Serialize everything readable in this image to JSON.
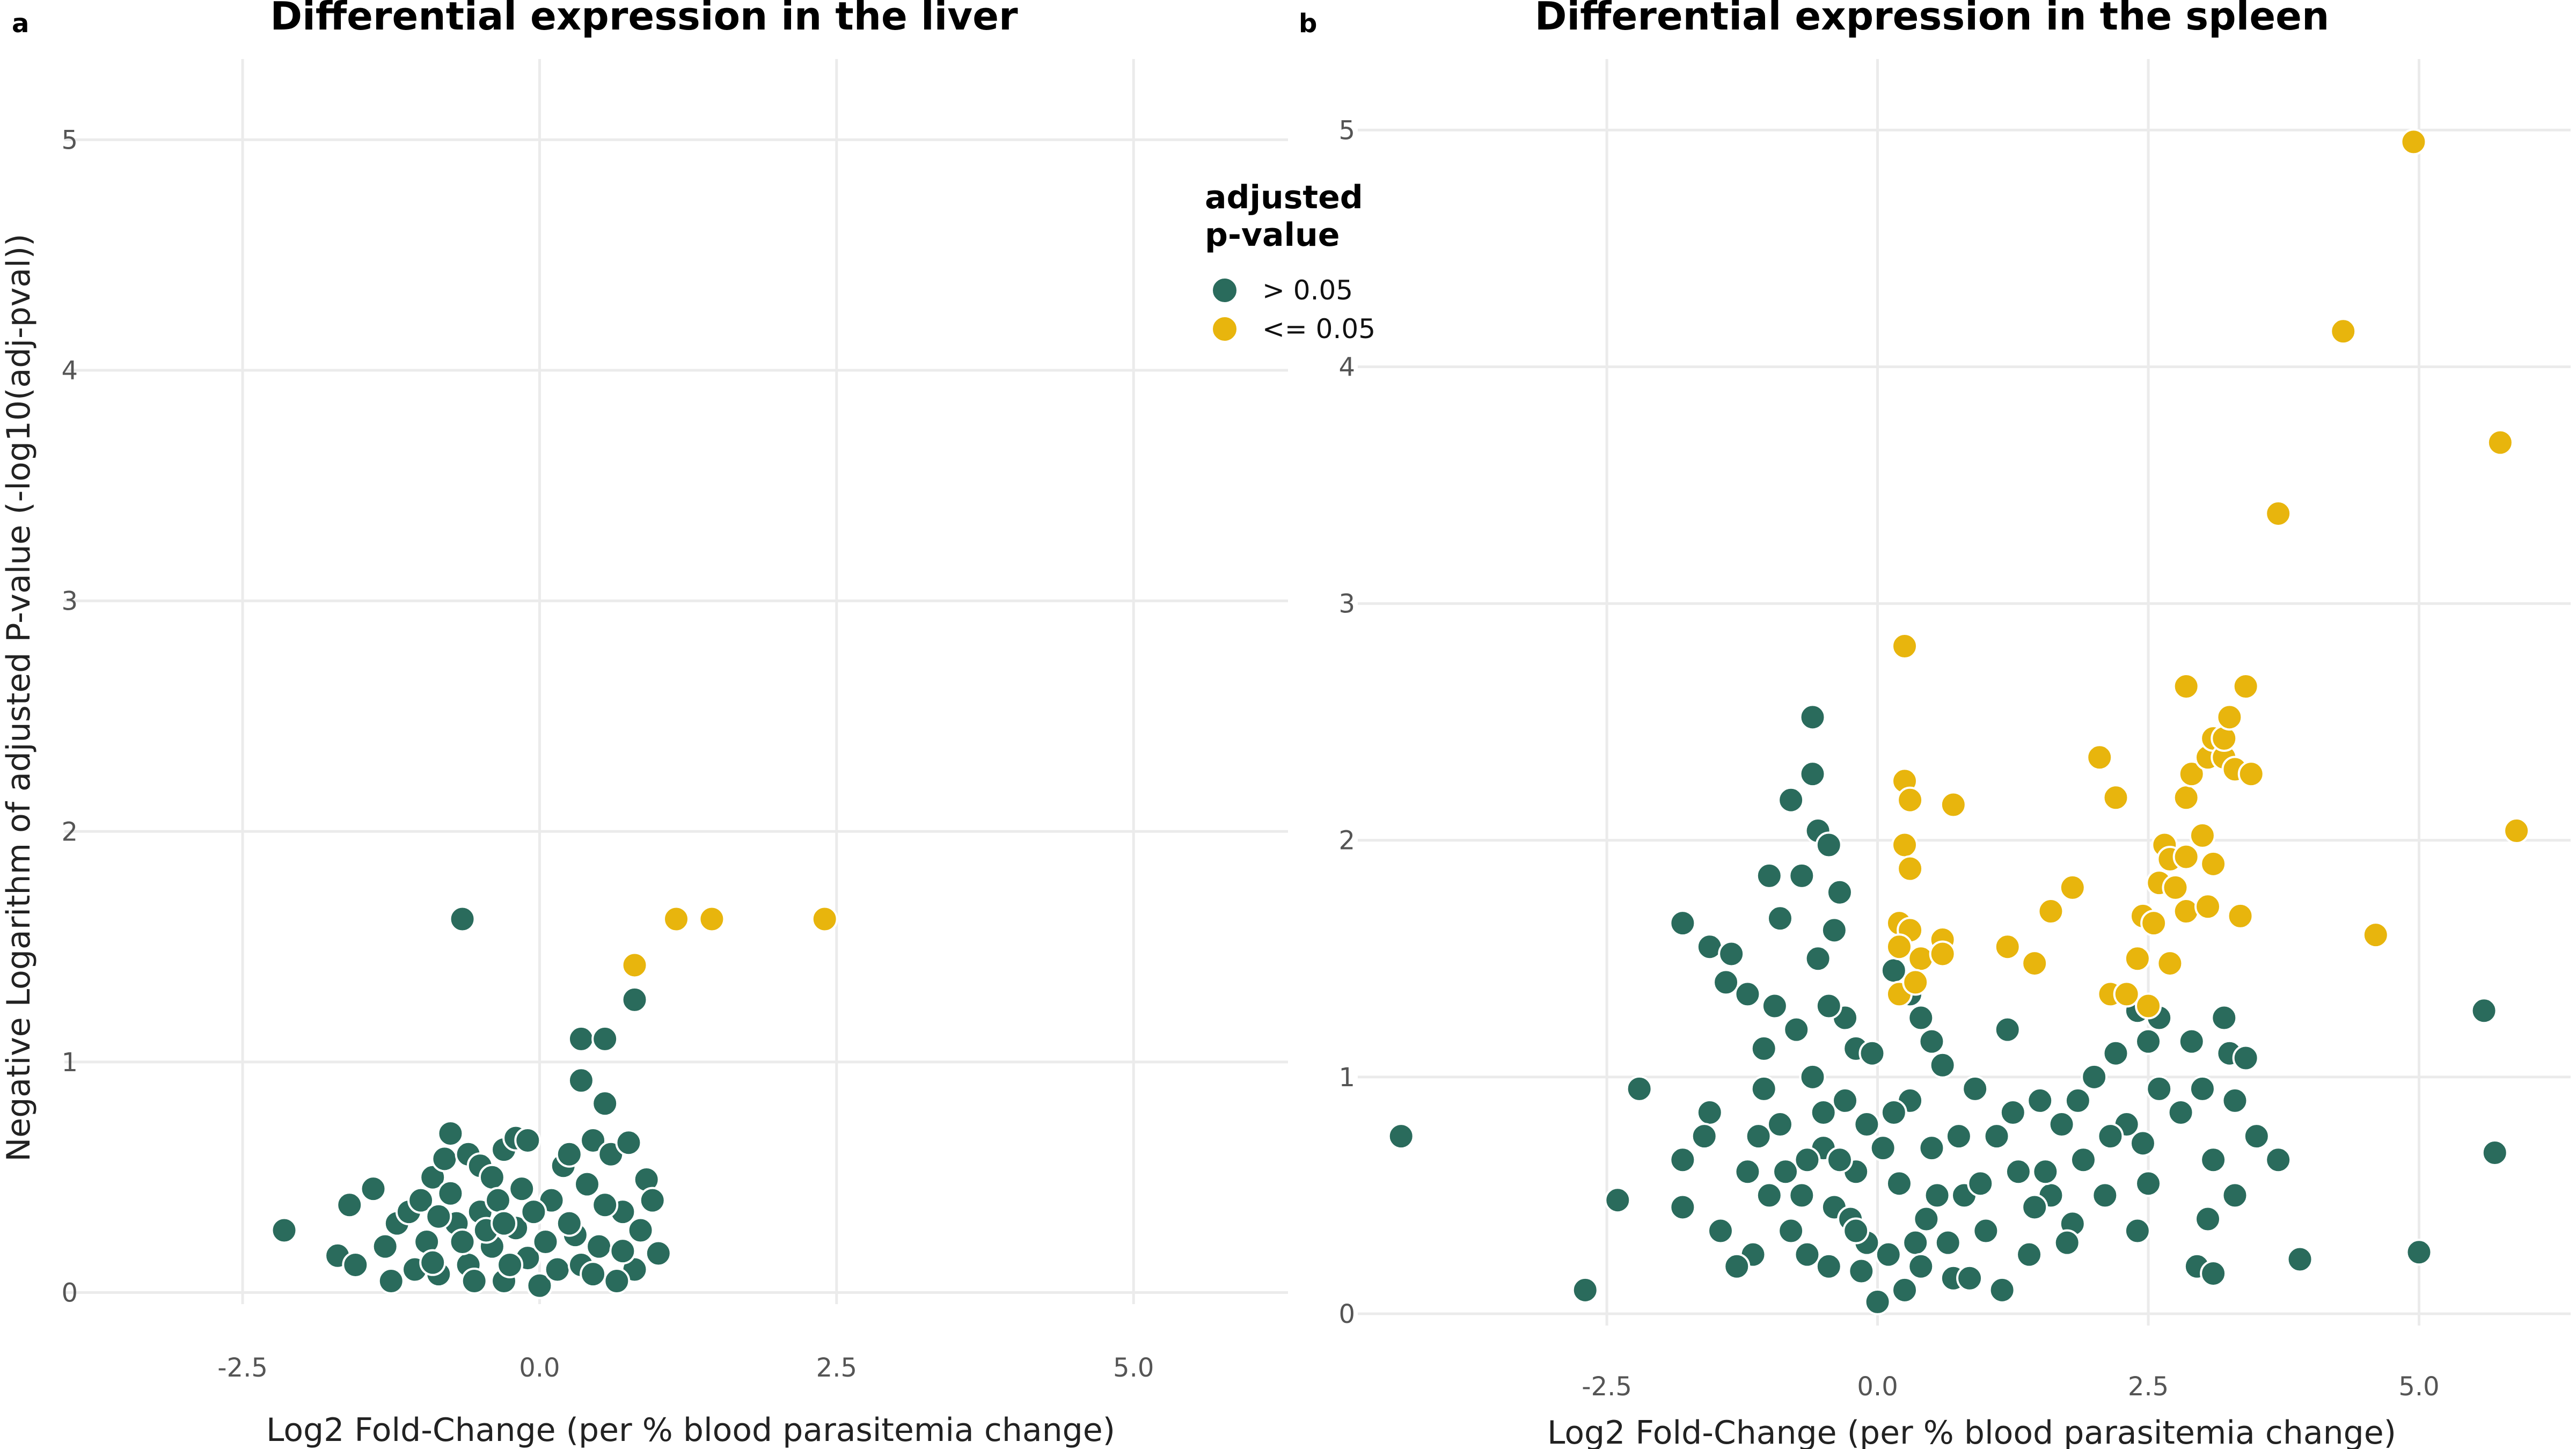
{
  "legend": {
    "title_line1": "adjusted",
    "title_line2": "p-value",
    "items": [
      {
        "label": "> 0.05",
        "color": "#2a6b5c"
      },
      {
        "label": "<= 0.05",
        "color": "#e8b50d"
      }
    ]
  },
  "colors": {
    "not_significant": "#2a6b5c",
    "significant": "#e8b50d",
    "grid": "#ebebeb"
  },
  "chart_data": [
    {
      "type": "scatter",
      "panel_label": "a",
      "title": "Differential expression in the liver",
      "xlabel": "Log2 Fold-Change (per % blood parasitemia change)",
      "ylabel": "Negative Logarithm of adjusted P-value (-log10(adj-pval))",
      "xlim": [
        -4.0,
        6.3
      ],
      "ylim": [
        -0.05,
        5.35
      ],
      "xticks": [
        -2.5,
        0.0,
        2.5,
        5.0
      ],
      "xtick_labels": [
        "-2.5",
        "0.0",
        "2.5",
        "5.0"
      ],
      "yticks": [
        0,
        1,
        2,
        3,
        4,
        5
      ],
      "ytick_labels": [
        "0",
        "1",
        "2",
        "3",
        "4",
        "5"
      ],
      "grid": true,
      "series": [
        {
          "name": "> 0.05",
          "color": "#2a6b5c",
          "points": [
            [
              -0.65,
              1.62
            ],
            [
              0.8,
              1.27
            ],
            [
              0.35,
              1.1
            ],
            [
              0.55,
              1.1
            ],
            [
              0.35,
              0.92
            ],
            [
              0.55,
              0.82
            ],
            [
              -2.15,
              0.27
            ],
            [
              -1.6,
              0.38
            ],
            [
              -1.4,
              0.45
            ],
            [
              -1.7,
              0.16
            ],
            [
              -1.55,
              0.12
            ],
            [
              -1.3,
              0.2
            ],
            [
              -1.2,
              0.3
            ],
            [
              -1.1,
              0.35
            ],
            [
              -1.0,
              0.4
            ],
            [
              -0.9,
              0.5
            ],
            [
              -0.8,
              0.58
            ],
            [
              -0.75,
              0.69
            ],
            [
              -0.6,
              0.6
            ],
            [
              -0.5,
              0.55
            ],
            [
              -0.4,
              0.5
            ],
            [
              -0.3,
              0.62
            ],
            [
              -0.2,
              0.67
            ],
            [
              -0.1,
              0.66
            ],
            [
              -1.05,
              0.1
            ],
            [
              -0.95,
              0.22
            ],
            [
              -0.85,
              0.08
            ],
            [
              -0.7,
              0.3
            ],
            [
              -0.6,
              0.12
            ],
            [
              -0.5,
              0.35
            ],
            [
              -0.4,
              0.2
            ],
            [
              -0.3,
              0.05
            ],
            [
              -0.2,
              0.28
            ],
            [
              -0.1,
              0.15
            ],
            [
              0.0,
              0.03
            ],
            [
              0.1,
              0.4
            ],
            [
              0.2,
              0.55
            ],
            [
              0.25,
              0.6
            ],
            [
              0.3,
              0.25
            ],
            [
              0.4,
              0.47
            ],
            [
              0.45,
              0.66
            ],
            [
              0.6,
              0.6
            ],
            [
              0.7,
              0.35
            ],
            [
              0.75,
              0.65
            ],
            [
              0.8,
              0.1
            ],
            [
              0.85,
              0.27
            ],
            [
              0.9,
              0.49
            ],
            [
              0.95,
              0.4
            ],
            [
              1.0,
              0.17
            ],
            [
              0.15,
              0.1
            ],
            [
              0.5,
              0.2
            ],
            [
              0.65,
              0.05
            ],
            [
              -0.9,
              0.13
            ],
            [
              -0.75,
              0.43
            ],
            [
              -0.55,
              0.05
            ],
            [
              -0.35,
              0.4
            ],
            [
              -0.25,
              0.12
            ],
            [
              -0.15,
              0.45
            ],
            [
              0.05,
              0.22
            ],
            [
              0.35,
              0.12
            ],
            [
              0.55,
              0.38
            ],
            [
              -1.25,
              0.05
            ],
            [
              -0.45,
              0.27
            ],
            [
              -0.65,
              0.22
            ],
            [
              -0.85,
              0.33
            ],
            [
              0.25,
              0.3
            ],
            [
              0.45,
              0.08
            ],
            [
              0.7,
              0.18
            ],
            [
              -0.05,
              0.35
            ],
            [
              -0.3,
              0.3
            ]
          ]
        },
        {
          "name": "<= 0.05",
          "color": "#e8b50d",
          "points": [
            [
              0.8,
              1.42
            ],
            [
              1.15,
              1.62
            ],
            [
              1.45,
              1.62
            ],
            [
              2.4,
              1.62
            ]
          ]
        }
      ]
    },
    {
      "type": "scatter",
      "panel_label": "b",
      "title": "Differential expression in the spleen",
      "xlabel": "Log2 Fold-Change (per % blood parasitemia change)",
      "ylabel": "",
      "xlim": [
        -4.8,
        6.4
      ],
      "ylim": [
        -0.05,
        5.3
      ],
      "xticks": [
        -2.5,
        0.0,
        2.5,
        5.0
      ],
      "xtick_labels": [
        "-2.5",
        "0.0",
        "2.5",
        "5.0"
      ],
      "yticks": [
        0,
        1,
        2,
        3,
        4,
        5
      ],
      "ytick_labels": [
        "0",
        "1",
        "2",
        "3",
        "4",
        "5"
      ],
      "grid": true,
      "series": [
        {
          "name": "> 0.05",
          "color": "#2a6b5c",
          "points": [
            [
              -4.4,
              0.75
            ],
            [
              -2.7,
              0.1
            ],
            [
              -2.4,
              0.48
            ],
            [
              -2.2,
              0.95
            ],
            [
              -1.8,
              1.65
            ],
            [
              -1.8,
              0.65
            ],
            [
              -1.8,
              0.45
            ],
            [
              -1.55,
              0.85
            ],
            [
              -1.55,
              1.55
            ],
            [
              -1.4,
              1.4
            ],
            [
              -1.35,
              1.52
            ],
            [
              -1.2,
              1.35
            ],
            [
              -1.15,
              0.25
            ],
            [
              -1.05,
              1.12
            ],
            [
              -1.0,
              1.85
            ],
            [
              -0.9,
              1.67
            ],
            [
              -0.8,
              2.17
            ],
            [
              -0.7,
              1.85
            ],
            [
              -0.6,
              2.52
            ],
            [
              -0.6,
              2.28
            ],
            [
              -0.55,
              2.04
            ],
            [
              -0.45,
              1.98
            ],
            [
              -0.35,
              1.78
            ],
            [
              -0.55,
              1.5
            ],
            [
              -0.4,
              1.62
            ],
            [
              -0.3,
              1.25
            ],
            [
              -0.2,
              1.12
            ],
            [
              -0.1,
              0.8
            ],
            [
              0.0,
              0.05
            ],
            [
              -0.1,
              0.3
            ],
            [
              -0.2,
              0.6
            ],
            [
              -0.3,
              0.9
            ],
            [
              -0.4,
              0.45
            ],
            [
              -0.5,
              0.7
            ],
            [
              -0.6,
              1.0
            ],
            [
              -0.7,
              0.5
            ],
            [
              -0.8,
              0.35
            ],
            [
              -0.9,
              0.8
            ],
            [
              -1.0,
              0.5
            ],
            [
              -1.1,
              0.75
            ],
            [
              -1.2,
              0.6
            ],
            [
              -1.3,
              0.2
            ],
            [
              -0.15,
              0.18
            ],
            [
              0.1,
              0.25
            ],
            [
              0.2,
              0.55
            ],
            [
              0.3,
              0.9
            ],
            [
              0.4,
              1.25
            ],
            [
              0.5,
              0.7
            ],
            [
              0.6,
              1.05
            ],
            [
              0.7,
              0.15
            ],
            [
              0.8,
              0.5
            ],
            [
              0.9,
              0.95
            ],
            [
              1.0,
              0.35
            ],
            [
              1.1,
              0.75
            ],
            [
              1.2,
              1.2
            ],
            [
              1.3,
              0.6
            ],
            [
              1.4,
              0.25
            ],
            [
              1.5,
              0.9
            ],
            [
              1.6,
              0.5
            ],
            [
              1.7,
              0.8
            ],
            [
              1.8,
              0.38
            ],
            [
              1.9,
              0.65
            ],
            [
              2.0,
              1.0
            ],
            [
              2.1,
              0.5
            ],
            [
              2.2,
              1.1
            ],
            [
              2.3,
              0.8
            ],
            [
              2.4,
              1.28
            ],
            [
              2.45,
              0.72
            ],
            [
              2.5,
              0.55
            ],
            [
              2.6,
              0.95
            ],
            [
              2.4,
              0.35
            ],
            [
              2.5,
              1.15
            ],
            [
              2.6,
              1.25
            ],
            [
              2.8,
              0.85
            ],
            [
              2.9,
              1.15
            ],
            [
              3.0,
              0.95
            ],
            [
              2.95,
              0.2
            ],
            [
              3.1,
              0.65
            ],
            [
              3.05,
              0.4
            ],
            [
              3.1,
              0.17
            ],
            [
              3.2,
              1.25
            ],
            [
              3.25,
              1.1
            ],
            [
              3.3,
              0.9
            ],
            [
              3.4,
              1.08
            ],
            [
              3.3,
              0.5
            ],
            [
              3.5,
              0.75
            ],
            [
              3.7,
              0.65
            ],
            [
              3.9,
              0.23
            ],
            [
              5.0,
              0.26
            ],
            [
              5.6,
              1.28
            ],
            [
              5.7,
              0.68
            ],
            [
              0.15,
              1.45
            ],
            [
              0.3,
              1.35
            ],
            [
              0.5,
              1.15
            ],
            [
              -0.05,
              1.1
            ],
            [
              0.25,
              0.1
            ],
            [
              0.45,
              0.4
            ],
            [
              0.65,
              0.3
            ],
            [
              0.85,
              0.15
            ],
            [
              1.15,
              0.1
            ],
            [
              1.45,
              0.45
            ],
            [
              1.75,
              0.3
            ],
            [
              -0.25,
              0.4
            ],
            [
              -0.45,
              0.2
            ],
            [
              -0.65,
              0.25
            ],
            [
              -0.85,
              0.6
            ],
            [
              -1.05,
              0.95
            ],
            [
              -0.75,
              1.2
            ],
            [
              -0.95,
              1.3
            ],
            [
              -0.35,
              0.65
            ],
            [
              0.05,
              0.7
            ],
            [
              0.35,
              0.3
            ],
            [
              0.55,
              0.5
            ],
            [
              0.75,
              0.75
            ],
            [
              0.95,
              0.55
            ],
            [
              1.25,
              0.85
            ],
            [
              1.55,
              0.6
            ],
            [
              1.85,
              0.9
            ],
            [
              2.15,
              0.75
            ],
            [
              -0.5,
              0.85
            ],
            [
              -0.2,
              0.35
            ],
            [
              0.15,
              0.85
            ],
            [
              0.4,
              0.2
            ],
            [
              -1.45,
              0.35
            ],
            [
              -1.6,
              0.75
            ],
            [
              -0.65,
              0.65
            ],
            [
              -0.45,
              1.3
            ]
          ]
        },
        {
          "name": "<= 0.05",
          "color": "#e8b50d",
          "points": [
            [
              4.95,
              4.95
            ],
            [
              4.3,
              4.15
            ],
            [
              5.75,
              3.68
            ],
            [
              3.7,
              3.38
            ],
            [
              5.9,
              2.04
            ],
            [
              4.6,
              1.6
            ],
            [
              0.25,
              2.82
            ],
            [
              0.25,
              2.25
            ],
            [
              0.3,
              2.17
            ],
            [
              0.7,
              2.15
            ],
            [
              0.25,
              1.98
            ],
            [
              0.3,
              1.88
            ],
            [
              0.2,
              1.65
            ],
            [
              0.3,
              1.62
            ],
            [
              0.2,
              1.55
            ],
            [
              0.4,
              1.5
            ],
            [
              0.6,
              1.58
            ],
            [
              0.6,
              1.52
            ],
            [
              0.2,
              1.35
            ],
            [
              0.35,
              1.4
            ],
            [
              1.2,
              1.55
            ],
            [
              1.45,
              1.48
            ],
            [
              1.6,
              1.7
            ],
            [
              1.8,
              1.8
            ],
            [
              2.05,
              2.35
            ],
            [
              2.2,
              2.18
            ],
            [
              2.15,
              1.35
            ],
            [
              2.4,
              1.5
            ],
            [
              2.45,
              1.68
            ],
            [
              2.55,
              1.65
            ],
            [
              2.6,
              1.82
            ],
            [
              2.65,
              1.98
            ],
            [
              2.7,
              1.92
            ],
            [
              2.7,
              1.48
            ],
            [
              2.75,
              1.8
            ],
            [
              2.85,
              2.18
            ],
            [
              2.85,
              1.93
            ],
            [
              2.85,
              1.7
            ],
            [
              2.85,
              2.65
            ],
            [
              2.9,
              2.28
            ],
            [
              3.0,
              2.02
            ],
            [
              3.05,
              2.35
            ],
            [
              3.1,
              2.43
            ],
            [
              3.1,
              1.9
            ],
            [
              3.2,
              2.35
            ],
            [
              3.2,
              2.43
            ],
            [
              3.25,
              2.52
            ],
            [
              3.3,
              2.3
            ],
            [
              3.4,
              2.65
            ],
            [
              3.45,
              2.28
            ],
            [
              3.35,
              1.68
            ],
            [
              3.05,
              1.72
            ],
            [
              2.3,
              1.35
            ],
            [
              2.5,
              1.3
            ]
          ]
        }
      ]
    }
  ]
}
